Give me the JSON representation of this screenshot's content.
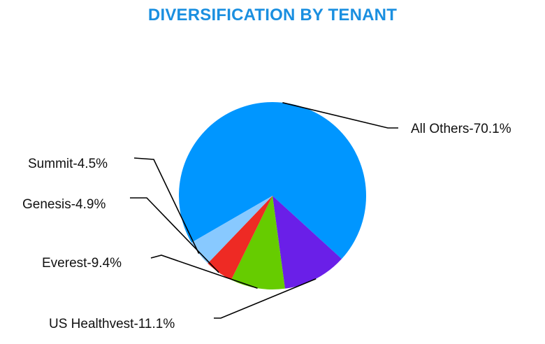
{
  "chart_data": {
    "type": "pie",
    "title": "DIVERSIFICATION BY TENANT",
    "title_color": "#1a8fe0",
    "slices": [
      {
        "label": "All Others-70.1%",
        "name": "All Others",
        "value": 70.1,
        "color": "#0096ff"
      },
      {
        "label": "US Healthvest-11.1%",
        "name": "US Healthvest",
        "value": 11.1,
        "color": "#6a1fe8"
      },
      {
        "label": "Everest-9.4%",
        "name": "Everest",
        "value": 9.4,
        "color": "#66cc00"
      },
      {
        "label": "Genesis-4.9%",
        "name": "Genesis",
        "value": 4.9,
        "color": "#ee2a24"
      },
      {
        "label": "Summit-4.5%",
        "name": "Summit",
        "value": 4.5,
        "color": "#88c9ff"
      }
    ],
    "legend": "none",
    "labels": "outside-with-leader-lines"
  }
}
